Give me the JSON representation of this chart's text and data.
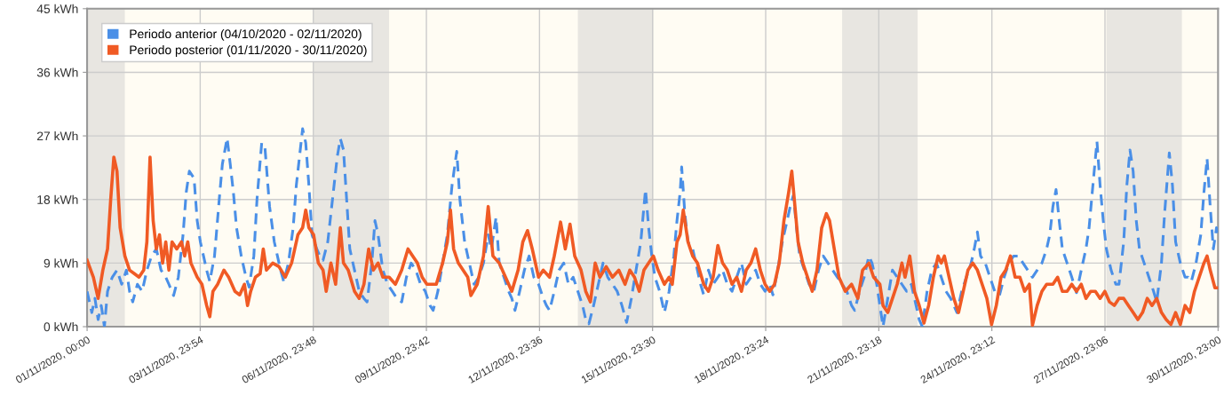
{
  "chart_data": {
    "type": "line",
    "xlim": [
      "2020-11-01T00:00",
      "2020-11-30T23:00"
    ],
    "ylim": [
      0,
      45
    ],
    "xticks": [
      {
        "value": "2020-11-01T00:00",
        "label": "01/11/2020, 00:00"
      },
      {
        "value": "2020-11-03T23:54",
        "label": "03/11/2020, 23:54"
      },
      {
        "value": "2020-11-06T23:48",
        "label": "06/11/2020, 23:48"
      },
      {
        "value": "2020-11-09T23:42",
        "label": "09/11/2020, 23:42"
      },
      {
        "value": "2020-11-12T23:36",
        "label": "12/11/2020, 23:36"
      },
      {
        "value": "2020-11-15T23:30",
        "label": "15/11/2020, 23:30"
      },
      {
        "value": "2020-11-18T23:24",
        "label": "18/11/2020, 23:24"
      },
      {
        "value": "2020-11-21T23:18",
        "label": "21/11/2020, 23:18"
      },
      {
        "value": "2020-11-24T23:12",
        "label": "24/11/2020, 23:12"
      },
      {
        "value": "2020-11-27T23:06",
        "label": "27/11/2020, 23:06"
      },
      {
        "value": "2020-11-30T23:00",
        "label": "30/11/2020, 23:00"
      }
    ],
    "yticks": [
      {
        "value": 0,
        "label": "0 kWh"
      },
      {
        "value": 9,
        "label": "9 kWh"
      },
      {
        "value": 18,
        "label": "18 kWh"
      },
      {
        "value": 27,
        "label": "27 kWh"
      },
      {
        "value": 36,
        "label": "36 kWh"
      },
      {
        "value": 45,
        "label": "45 kWh"
      }
    ],
    "grid": true,
    "legend": "top left",
    "bands": [
      {
        "axis": "x",
        "from": "2020-11-01T00:00",
        "to": "2020-11-02T00:00",
        "color": "#e8e6e1"
      },
      {
        "axis": "x",
        "from": "2020-11-07T00:00",
        "to": "2020-11-09T00:00",
        "color": "#e8e6e1"
      },
      {
        "axis": "x",
        "from": "2020-11-14T00:00",
        "to": "2020-11-16T00:00",
        "color": "#e8e6e1"
      },
      {
        "axis": "x",
        "from": "2020-11-21T00:00",
        "to": "2020-11-23T00:00",
        "color": "#e8e6e1"
      },
      {
        "axis": "x",
        "from": "2020-11-28T00:00",
        "to": "2020-11-30T00:00",
        "color": "#e8e6e1"
      }
    ],
    "series": [
      {
        "name": "Periodo anterior (04/10/2020 - 02/11/2020)",
        "color": "#4a8fe7",
        "line_style": "dashed",
        "x": [
          "2020-11-01T00:00",
          "2020-11-01T03:00",
          "2020-11-01T05:00",
          "2020-11-01T07:00",
          "2020-11-01T09:00",
          "2020-11-01T11:00",
          "2020-11-01T13:00",
          "2020-11-01T16:00",
          "2020-11-01T19:00",
          "2020-11-01T22:00",
          "2020-11-02T01:00",
          "2020-11-02T03:00",
          "2020-11-02T05:00",
          "2020-11-02T08:00",
          "2020-11-02T11:00",
          "2020-11-02T14:00",
          "2020-11-02T17:00",
          "2020-11-02T20:00",
          "2020-11-02T23:00",
          "2020-11-03T02:00",
          "2020-11-03T04:00",
          "2020-11-03T07:00",
          "2020-11-03T10:00",
          "2020-11-03T13:00",
          "2020-11-03T15:00",
          "2020-11-03T17:00",
          "2020-11-03T20:00",
          "2020-11-03T22:00",
          "2020-11-04T00:00",
          "2020-11-04T02:00",
          "2020-11-04T04:00",
          "2020-11-04T06:00",
          "2020-11-04T09:00",
          "2020-11-04T12:00",
          "2020-11-04T14:00",
          "2020-11-04T17:00",
          "2020-11-04T19:00",
          "2020-11-04T21:00",
          "2020-11-04T23:00",
          "2020-11-05T02:00",
          "2020-11-05T05:00",
          "2020-11-05T07:00",
          "2020-11-05T10:00",
          "2020-11-05T12:00",
          "2020-11-05T15:00",
          "2020-11-05T17:00",
          "2020-11-05T20:00",
          "2020-11-05T23:00",
          "2020-11-06T01:00",
          "2020-11-06T03:00",
          "2020-11-06T05:00",
          "2020-11-06T08:00",
          "2020-11-06T11:00",
          "2020-11-06T13:00",
          "2020-11-06T15:00",
          "2020-11-06T17:00",
          "2020-11-06T19:00",
          "2020-11-06T21:00",
          "2020-11-06T23:00",
          "2020-11-07T02:00",
          "2020-11-07T04:00",
          "2020-11-07T06:00",
          "2020-11-07T09:00",
          "2020-11-07T12:00",
          "2020-11-07T15:00",
          "2020-11-07T17:00",
          "2020-11-07T19:00",
          "2020-11-07T21:00",
          "2020-11-07T23:00",
          "2020-11-08T02:00",
          "2020-11-08T05:00",
          "2020-11-08T08:00",
          "2020-11-08T10:00",
          "2020-11-08T13:00",
          "2020-11-08T15:00",
          "2020-11-08T17:00",
          "2020-11-08T20:00",
          "2020-11-08T23:00",
          "2020-11-09T02:00",
          "2020-11-09T05:00",
          "2020-11-09T08:00",
          "2020-11-09T11:00",
          "2020-11-09T14:00",
          "2020-11-09T17:00",
          "2020-11-09T20:00",
          "2020-11-09T23:00",
          "2020-11-10T02:00",
          "2020-11-10T04:00",
          "2020-11-10T07:00",
          "2020-11-10T10:00",
          "2020-11-10T13:00",
          "2020-11-10T16:00",
          "2020-11-10T19:00",
          "2020-11-10T21:00",
          "2020-11-11T00:00",
          "2020-11-11T03:00",
          "2020-11-11T06:00",
          "2020-11-11T09:00",
          "2020-11-11T12:00",
          "2020-11-11T15:00",
          "2020-11-11T17:00",
          "2020-11-11T20:00",
          "2020-11-11T22:00",
          "2020-11-12T01:00",
          "2020-11-12T04:00",
          "2020-11-12T06:00",
          "2020-11-12T08:00",
          "2020-11-12T11:00",
          "2020-11-12T14:00",
          "2020-11-12T17:00",
          "2020-11-12T20:00",
          "2020-11-12T23:00",
          "2020-11-13T02:00",
          "2020-11-13T04:00",
          "2020-11-13T06:00",
          "2020-11-13T09:00",
          "2020-11-13T12:00",
          "2020-11-13T15:00",
          "2020-11-13T18:00",
          "2020-11-13T21:00",
          "2020-11-14T00:00",
          "2020-11-14T03:00",
          "2020-11-14T05:00",
          "2020-11-14T07:00",
          "2020-11-14T10:00",
          "2020-11-14T13:00",
          "2020-11-14T16:00",
          "2020-11-14T19:00",
          "2020-11-14T22:00",
          "2020-11-15T01:00",
          "2020-11-15T04:00",
          "2020-11-15T07:00",
          "2020-11-15T10:00",
          "2020-11-15T13:00",
          "2020-11-15T16:00",
          "2020-11-15T18:00",
          "2020-11-15T19:00",
          "2020-11-15T21:00",
          "2020-11-15T23:00",
          "2020-11-16T01:00",
          "2020-11-16T04:00",
          "2020-11-16T07:00",
          "2020-11-16T10:00",
          "2020-11-16T13:00",
          "2020-11-16T15:00",
          "2020-11-16T17:00",
          "2020-11-16T18:00",
          "2020-11-16T20:00",
          "2020-11-16T22:00",
          "2020-11-17T01:00",
          "2020-11-17T04:00",
          "2020-11-17T06:00",
          "2020-11-17T08:00",
          "2020-11-17T11:00",
          "2020-11-17T14:00",
          "2020-11-17T17:00",
          "2020-11-17T20:00",
          "2020-11-17T23:00",
          "2020-11-18T02:00",
          "2020-11-18T05:00",
          "2020-11-18T08:00",
          "2020-11-18T11:00",
          "2020-11-18T14:00",
          "2020-11-18T17:00",
          "2020-11-18T20:00",
          "2020-11-18T23:00",
          "2020-11-19T02:00",
          "2020-11-19T04:00",
          "2020-11-19T07:00",
          "2020-11-19T10:00",
          "2020-11-19T13:00",
          "2020-11-19T15:00",
          "2020-11-19T17:00",
          "2020-11-19T19:00",
          "2020-11-19T21:00",
          "2020-11-20T00:00",
          "2020-11-20T03:00",
          "2020-11-20T06:00",
          "2020-11-20T09:00",
          "2020-11-20T12:00",
          "2020-11-20T15:00",
          "2020-11-20T18:00",
          "2020-11-20T21:00",
          "2020-11-21T00:00",
          "2020-11-21T03:00",
          "2020-11-21T06:00",
          "2020-11-21T08:00",
          "2020-11-21T11:00",
          "2020-11-21T14:00",
          "2020-11-21T17:00",
          "2020-11-21T19:00",
          "2020-11-21T22:00",
          "2020-11-22T00:00",
          "2020-11-22T02:00",
          "2020-11-22T05:00",
          "2020-11-22T08:00",
          "2020-11-22T11:00",
          "2020-11-22T14:00",
          "2020-11-22T17:00",
          "2020-11-22T20:00",
          "2020-11-22T23:00",
          "2020-11-23T01:00",
          "2020-11-23T03:00",
          "2020-11-23T06:00",
          "2020-11-23T09:00",
          "2020-11-23T12:00",
          "2020-11-23T15:00",
          "2020-11-23T18:00",
          "2020-11-23T21:00",
          "2020-11-23T23:00",
          "2020-11-24T01:00",
          "2020-11-24T04:00",
          "2020-11-24T07:00",
          "2020-11-24T10:00",
          "2020-11-24T12:00",
          "2020-11-24T14:00",
          "2020-11-24T16:00",
          "2020-11-24T19:00",
          "2020-11-24T22:00",
          "2020-11-25T01:00",
          "2020-11-25T04:00",
          "2020-11-25T07:00",
          "2020-11-25T10:00",
          "2020-11-25T13:00",
          "2020-11-25T16:00",
          "2020-11-25T19:00",
          "2020-11-25T22:00",
          "2020-11-26T01:00",
          "2020-11-26T04:00",
          "2020-11-26T07:00",
          "2020-11-26T10:00",
          "2020-11-26T12:00",
          "2020-11-26T14:00",
          "2020-11-26T16:00",
          "2020-11-26T18:00",
          "2020-11-26T20:00",
          "2020-11-26T23:00",
          "2020-11-27T02:00",
          "2020-11-27T05:00",
          "2020-11-27T08:00",
          "2020-11-27T11:00",
          "2020-11-27T13:00",
          "2020-11-27T15:00",
          "2020-11-27T18:00",
          "2020-11-27T20:00",
          "2020-11-27T22:00",
          "2020-11-28T00:00",
          "2020-11-28T03:00",
          "2020-11-28T06:00",
          "2020-11-28T08:00",
          "2020-11-28T11:00",
          "2020-11-28T13:00",
          "2020-11-28T15:00",
          "2020-11-28T17:00",
          "2020-11-28T19:00",
          "2020-11-28T21:00",
          "2020-11-29T00:00",
          "2020-11-29T03:00",
          "2020-11-29T06:00",
          "2020-11-29T08:00",
          "2020-11-29T11:00",
          "2020-11-29T13:00",
          "2020-11-29T16:00",
          "2020-11-29T18:00",
          "2020-11-29T20:00",
          "2020-11-29T23:00",
          "2020-11-30T02:00",
          "2020-11-30T04:00",
          "2020-11-30T06:00",
          "2020-11-30T09:00",
          "2020-11-30T12:00",
          "2020-11-30T14:00",
          "2020-11-30T16:00",
          "2020-11-30T18:00",
          "2020-11-30T20:00",
          "2020-11-30T22:00",
          "2020-11-30T23:00"
        ],
        "values": [
          5,
          2,
          4,
          1,
          3,
          0,
          5,
          7,
          8,
          6,
          8,
          5,
          3.5,
          6,
          5,
          8,
          10,
          11,
          8,
          7,
          6,
          4.4,
          7,
          13,
          19,
          22,
          21,
          15,
          12,
          10,
          8,
          6.4,
          10,
          18,
          23,
          26.7,
          23,
          19,
          14,
          10,
          7,
          5.6,
          10,
          18,
          26,
          25.5,
          17,
          12,
          10,
          8,
          6.4,
          9,
          14,
          20,
          24,
          28,
          26,
          20,
          13,
          11,
          10,
          9.4,
          12,
          18,
          24,
          26.6,
          25,
          18,
          11,
          8,
          5,
          4,
          3.5,
          9,
          15,
          13,
          8,
          6,
          5,
          4,
          3.5,
          7,
          9,
          8,
          6,
          5,
          3,
          2.3,
          5,
          9,
          13,
          20,
          24.8,
          18,
          12,
          9,
          6,
          7,
          9,
          13,
          11,
          15.5,
          9,
          7,
          5,
          4,
          2.3,
          5,
          8,
          10,
          7,
          6,
          4,
          3,
          2.3,
          5,
          8,
          9,
          6,
          7,
          5,
          3,
          1,
          0.4,
          3,
          6,
          9,
          7,
          6,
          5,
          3,
          0.6,
          4,
          8,
          12,
          17,
          19.4,
          14,
          10,
          7,
          5,
          2,
          5,
          10,
          15,
          19,
          22.6,
          16,
          12,
          11,
          8,
          6,
          4.5,
          8,
          6,
          7,
          8,
          6,
          5,
          7,
          9,
          6,
          7,
          8,
          6,
          5,
          6,
          4.5,
          8,
          12,
          15,
          17,
          18.6,
          14,
          10,
          8,
          6,
          5,
          8,
          10,
          9,
          8,
          7,
          6,
          5,
          3,
          2.3,
          5,
          7,
          10,
          9,
          6,
          3,
          0,
          4,
          8,
          7,
          6,
          5,
          6,
          3,
          1,
          0,
          5,
          8,
          9,
          7,
          5,
          4,
          3,
          2,
          5,
          7,
          9,
          11,
          13.4,
          10,
          9,
          7,
          5,
          4.4,
          7,
          9,
          10,
          10,
          9,
          8,
          7,
          8,
          9,
          11,
          13,
          17,
          19.4,
          15,
          11,
          9,
          7,
          4.8,
          8,
          11,
          14,
          19,
          26.2,
          20,
          15,
          11,
          8,
          6,
          6,
          12,
          20,
          25,
          22,
          15,
          11,
          9,
          7,
          5,
          3.5,
          9,
          16,
          24.6,
          20,
          12,
          9,
          7,
          7,
          6.4,
          9,
          13,
          19,
          23.8,
          17,
          11,
          14,
          12.8
        ]
      },
      {
        "name": "Periodo posterior (01/11/2020 - 30/11/2020)",
        "color": "#f05a24",
        "line_style": "solid",
        "x": [
          "2020-11-01T00:00",
          "2020-11-01T04:00",
          "2020-11-01T07:00",
          "2020-11-01T10:00",
          "2020-11-01T13:00",
          "2020-11-01T15:00",
          "2020-11-01T17:00",
          "2020-11-01T19:00",
          "2020-11-01T21:00",
          "2020-11-02T00:00",
          "2020-11-02T03:00",
          "2020-11-02T06:00",
          "2020-11-02T09:00",
          "2020-11-02T12:00",
          "2020-11-02T14:00",
          "2020-11-02T16:00",
          "2020-11-02T18:00",
          "2020-11-02T20:00",
          "2020-11-02T22:00",
          "2020-11-03T00:00",
          "2020-11-03T02:00",
          "2020-11-03T04:00",
          "2020-11-03T06:00",
          "2020-11-03T09:00",
          "2020-11-03T12:00",
          "2020-11-03T14:00",
          "2020-11-03T16:00",
          "2020-11-03T18:00",
          "2020-11-03T22:00",
          "2020-11-04T01:00",
          "2020-11-04T04:00",
          "2020-11-04T06:00",
          "2020-11-04T08:00",
          "2020-11-04T11:00",
          "2020-11-04T15:00",
          "2020-11-04T18:00",
          "2020-11-04T22:00",
          "2020-11-05T01:00",
          "2020-11-05T04:00",
          "2020-11-05T06:00",
          "2020-11-05T08:00",
          "2020-11-05T11:00",
          "2020-11-05T14:00",
          "2020-11-05T16:00",
          "2020-11-05T18:00",
          "2020-11-05T22:00",
          "2020-11-06T02:00",
          "2020-11-06T06:00",
          "2020-11-06T10:00",
          "2020-11-06T14:00",
          "2020-11-06T17:00",
          "2020-11-06T19:00",
          "2020-11-06T21:00",
          "2020-11-07T00:00",
          "2020-11-07T03:00",
          "2020-11-07T06:00",
          "2020-11-07T08:00",
          "2020-11-07T11:00",
          "2020-11-07T14:00",
          "2020-11-07T17:00",
          "2020-11-07T19:00",
          "2020-11-07T22:00",
          "2020-11-08T02:00",
          "2020-11-08T05:00",
          "2020-11-08T08:00",
          "2020-11-08T11:00",
          "2020-11-08T14:00",
          "2020-11-08T17:00",
          "2020-11-08T20:00",
          "2020-11-09T00:00",
          "2020-11-09T04:00",
          "2020-11-09T08:00",
          "2020-11-09T12:00",
          "2020-11-09T15:00",
          "2020-11-09T18:00",
          "2020-11-09T21:00",
          "2020-11-10T00:00",
          "2020-11-10T03:00",
          "2020-11-10T06:00",
          "2020-11-10T10:00",
          "2020-11-10T13:00",
          "2020-11-10T15:00",
          "2020-11-10T17:00",
          "2020-11-10T20:00",
          "2020-11-10T23:00",
          "2020-11-11T02:00",
          "2020-11-11T04:00",
          "2020-11-11T08:00",
          "2020-11-11T12:00",
          "2020-11-11T15:00",
          "2020-11-11T18:00",
          "2020-11-11T22:00",
          "2020-11-12T02:00",
          "2020-11-12T06:00",
          "2020-11-12T10:00",
          "2020-11-12T13:00",
          "2020-11-12T16:00",
          "2020-11-12T19:00",
          "2020-11-12T23:00",
          "2020-11-13T02:00",
          "2020-11-13T06:00",
          "2020-11-13T09:00",
          "2020-11-13T13:00",
          "2020-11-13T16:00",
          "2020-11-13T19:00",
          "2020-11-13T22:00",
          "2020-11-14T02:00",
          "2020-11-14T05:00",
          "2020-11-14T08:00",
          "2020-11-14T11:00",
          "2020-11-14T14:00",
          "2020-11-14T18:00",
          "2020-11-14T22:00",
          "2020-11-15T02:00",
          "2020-11-15T06:00",
          "2020-11-15T09:00",
          "2020-11-15T12:00",
          "2020-11-15T15:00",
          "2020-11-15T18:00",
          "2020-11-15T21:00",
          "2020-11-16T00:00",
          "2020-11-16T03:00",
          "2020-11-16T07:00",
          "2020-11-16T10:00",
          "2020-11-16T12:00",
          "2020-11-16T15:00",
          "2020-11-16T17:00",
          "2020-11-16T19:00",
          "2020-11-16T22:00",
          "2020-11-17T01:00",
          "2020-11-17T04:00",
          "2020-11-17T08:00",
          "2020-11-17T11:00",
          "2020-11-17T14:00",
          "2020-11-17T17:00",
          "2020-11-17T20:00",
          "2020-11-17T23:00",
          "2020-11-18T02:00",
          "2020-11-18T05:00",
          "2020-11-18T08:00",
          "2020-11-18T11:00",
          "2020-11-18T14:00",
          "2020-11-18T17:00",
          "2020-11-18T20:00",
          "2020-11-18T23:00",
          "2020-11-19T02:00",
          "2020-11-19T05:00",
          "2020-11-19T08:00",
          "2020-11-19T11:00",
          "2020-11-19T14:00",
          "2020-11-19T16:00",
          "2020-11-19T18:00",
          "2020-11-19T20:00",
          "2020-11-19T23:00",
          "2020-11-20T02:00",
          "2020-11-20T05:00",
          "2020-11-20T08:00",
          "2020-11-20T11:00",
          "2020-11-20T14:00",
          "2020-11-20T16:00",
          "2020-11-20T19:00",
          "2020-11-20T22:00",
          "2020-11-21T02:00",
          "2020-11-21T06:00",
          "2020-11-21T10:00",
          "2020-11-21T13:00",
          "2020-11-21T17:00",
          "2020-11-21T20:00",
          "2020-11-22T00:00",
          "2020-11-22T02:00",
          "2020-11-22T05:00",
          "2020-11-22T08:00",
          "2020-11-22T11:00",
          "2020-11-22T14:00",
          "2020-11-22T16:00",
          "2020-11-22T19:00",
          "2020-11-22T22:00",
          "2020-11-23T01:00",
          "2020-11-23T04:00",
          "2020-11-23T07:00",
          "2020-11-23T10:00",
          "2020-11-23T13:00",
          "2020-11-23T15:00",
          "2020-11-23T17:00",
          "2020-11-23T20:00",
          "2020-11-23T23:00",
          "2020-11-24T02:00",
          "2020-11-24T05:00",
          "2020-11-24T08:00",
          "2020-11-24T11:00",
          "2020-11-24T14:00",
          "2020-11-24T17:00",
          "2020-11-24T20:00",
          "2020-11-24T23:00",
          "2020-11-25T02:00",
          "2020-11-25T05:00",
          "2020-11-25T08:00",
          "2020-11-25T11:00",
          "2020-11-25T14:00",
          "2020-11-25T17:00",
          "2020-11-25T20:00",
          "2020-11-25T23:00",
          "2020-11-26T01:00",
          "2020-11-26T04:00",
          "2020-11-26T07:00",
          "2020-11-26T10:00",
          "2020-11-26T14:00",
          "2020-11-26T17:00",
          "2020-11-26T20:00",
          "2020-11-26T23:00",
          "2020-11-27T02:00",
          "2020-11-27T05:00",
          "2020-11-27T08:00",
          "2020-11-27T11:00",
          "2020-11-27T14:00",
          "2020-11-27T17:00",
          "2020-11-27T20:00",
          "2020-11-27T23:00",
          "2020-11-28T02:00",
          "2020-11-28T05:00",
          "2020-11-28T08:00",
          "2020-11-28T11:00",
          "2020-11-28T14:00",
          "2020-11-28T17:00",
          "2020-11-28T20:00",
          "2020-11-28T23:00",
          "2020-11-29T02:00",
          "2020-11-29T05:00",
          "2020-11-29T08:00",
          "2020-11-29T11:00",
          "2020-11-29T14:00",
          "2020-11-29T17:00",
          "2020-11-29T20:00",
          "2020-11-29T23:00",
          "2020-11-30T02:00",
          "2020-11-30T05:00",
          "2020-11-30T08:00",
          "2020-11-30T11:00",
          "2020-11-30T14:00",
          "2020-11-30T16:00",
          "2020-11-30T18:00",
          "2020-11-30T21:00",
          "2020-11-30T23:00"
        ],
        "values": [
          9.4,
          7,
          4,
          8,
          11,
          18,
          24,
          22,
          14,
          10,
          8,
          7.5,
          7,
          8,
          12,
          24,
          15,
          11,
          13,
          9,
          12,
          8,
          12,
          11,
          12,
          10,
          12,
          9,
          7,
          6,
          3,
          1.4,
          5,
          6,
          8,
          7,
          5,
          4.5,
          6,
          3,
          5,
          7,
          7.5,
          11,
          8,
          9,
          8.5,
          7,
          9,
          13,
          14,
          16.5,
          14,
          13,
          9,
          8,
          5,
          9,
          6,
          14,
          9,
          8,
          5,
          4,
          6,
          11,
          8,
          9,
          7,
          7,
          6,
          8,
          11,
          10,
          9,
          7,
          6,
          6,
          6,
          9,
          12,
          16.5,
          11,
          9,
          8,
          7,
          4.4,
          6,
          10,
          17,
          10,
          9,
          7,
          5,
          8,
          12,
          13.6,
          11,
          7,
          8,
          7,
          10,
          14.8,
          11,
          14.5,
          10,
          8,
          5,
          3.5,
          9,
          7,
          8.5,
          7,
          8,
          6,
          8,
          7,
          5,
          8,
          9,
          10,
          8,
          6,
          7,
          6,
          12,
          13,
          16.5,
          12,
          10,
          9,
          6,
          5,
          7,
          11.5,
          9,
          8,
          6,
          7,
          5,
          8,
          9,
          11,
          8,
          6,
          5,
          6,
          9,
          15,
          19,
          22,
          17,
          12,
          9,
          7,
          5,
          8,
          14,
          16,
          15,
          11,
          7,
          5,
          6,
          4,
          8,
          9,
          7,
          6,
          3,
          2,
          4,
          6,
          9,
          7,
          10,
          5,
          3,
          0.5,
          3,
          7,
          10,
          9,
          10,
          7,
          4,
          2,
          5,
          8,
          9,
          8,
          6,
          4,
          0.3,
          3,
          7,
          8,
          10,
          7,
          7,
          5,
          6,
          0.2,
          3,
          5,
          6,
          6,
          7,
          5,
          5,
          6,
          5,
          6,
          4,
          5,
          5,
          4,
          5,
          3.5,
          3,
          4,
          4,
          3,
          2,
          1,
          2,
          4,
          3,
          4,
          2,
          1,
          0.3,
          2,
          0.3,
          3,
          2,
          5,
          7,
          9,
          10,
          8,
          5.5,
          5.5
        ]
      }
    ]
  }
}
